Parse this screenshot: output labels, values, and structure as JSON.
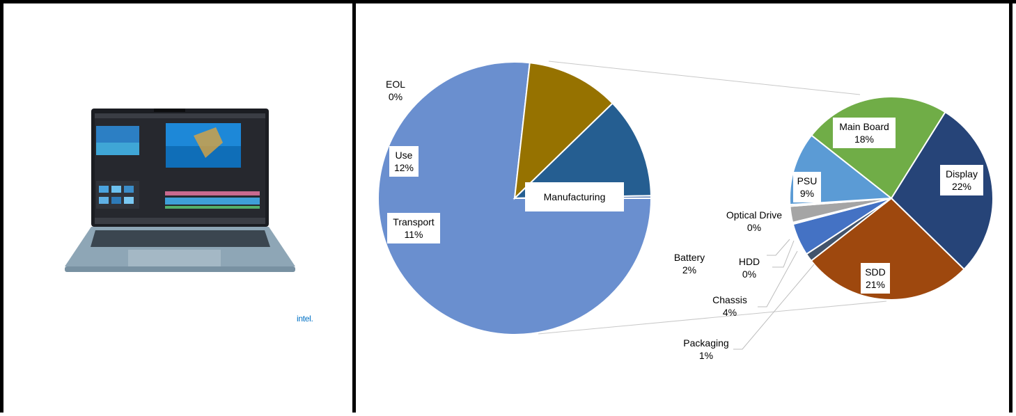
{
  "left_panel": {
    "brand_text": "intel."
  },
  "chart_data": [
    {
      "type": "pie",
      "title": "",
      "slices": [
        {
          "label": "Manufacturing",
          "value": 77,
          "value_label": "",
          "color": "#6a8fcf"
        },
        {
          "label": "Transport",
          "value": 11,
          "value_label": "11%",
          "color": "#967200"
        },
        {
          "label": "Use",
          "value": 12,
          "value_label": "12%",
          "color": "#255e91"
        },
        {
          "label": "EOL",
          "value": 0.3,
          "value_label": "0%",
          "color": "#5b7fb8"
        }
      ]
    },
    {
      "type": "pie",
      "title": "",
      "slices": [
        {
          "label": "Display",
          "value": 22,
          "value_label": "22%",
          "color": "#264478"
        },
        {
          "label": "SDD",
          "value": 21,
          "value_label": "21%",
          "color": "#9e480e"
        },
        {
          "label": "Packaging",
          "value": 1,
          "value_label": "1%",
          "color": "#43546b"
        },
        {
          "label": "Chassis",
          "value": 4,
          "value_label": "4%",
          "color": "#4472c4"
        },
        {
          "label": "HDD",
          "value": 0.2,
          "value_label": "0%",
          "color": "#dddddd"
        },
        {
          "label": "Battery",
          "value": 2,
          "value_label": "2%",
          "color": "#a5a5a5"
        },
        {
          "label": "Optical Drive",
          "value": 0.2,
          "value_label": "0%",
          "color": "#cccccc"
        },
        {
          "label": "PSU",
          "value": 9,
          "value_label": "9%",
          "color": "#5b9bd5"
        },
        {
          "label": "Main Board",
          "value": 18,
          "value_label": "18%",
          "color": "#70ad47"
        }
      ]
    }
  ]
}
